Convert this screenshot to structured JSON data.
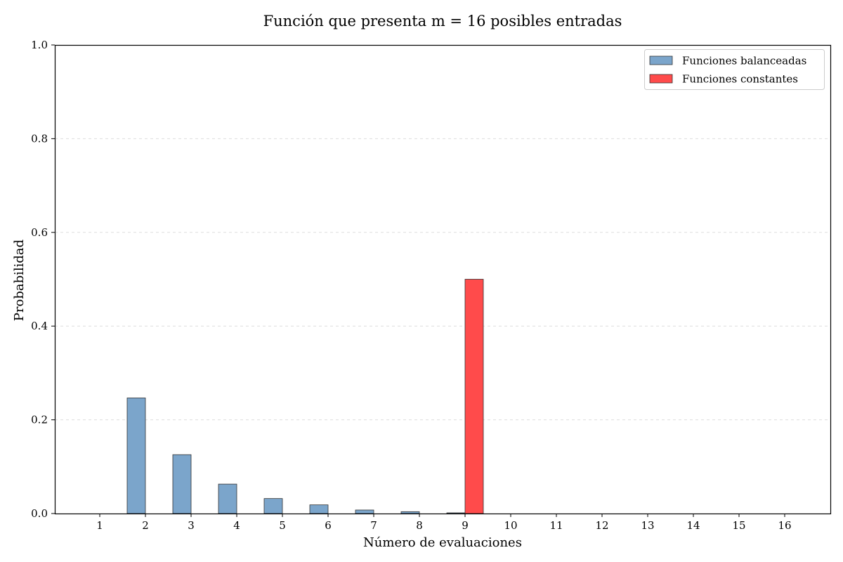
{
  "chart_data": {
    "type": "bar",
    "title": "Función que presenta m = 16 posibles entradas",
    "xlabel": "Número de evaluaciones",
    "ylabel": "Probabilidad",
    "categories": [
      "1",
      "2",
      "3",
      "4",
      "5",
      "6",
      "7",
      "8",
      "9",
      "10",
      "11",
      "12",
      "13",
      "14",
      "15",
      "16"
    ],
    "ylim": [
      0,
      1.0
    ],
    "yticks": [
      "0.0",
      "0.2",
      "0.4",
      "0.6",
      "0.8",
      "1.0"
    ],
    "grid": "y-dashed",
    "legend_position": "top-right",
    "series": [
      {
        "name": "Funciones balanceadas",
        "color": "#7BA5CB",
        "values": [
          0,
          0.2467,
          0.1256,
          0.0628,
          0.032,
          0.0185,
          0.0075,
          0.004,
          0.0015,
          0,
          0,
          0,
          0,
          0,
          0,
          0
        ]
      },
      {
        "name": "Funciones constantes",
        "color": "#FF4B4B",
        "values": [
          0,
          0,
          0,
          0,
          0,
          0,
          0,
          0,
          0.5,
          0,
          0,
          0,
          0,
          0,
          0,
          0
        ]
      }
    ]
  }
}
